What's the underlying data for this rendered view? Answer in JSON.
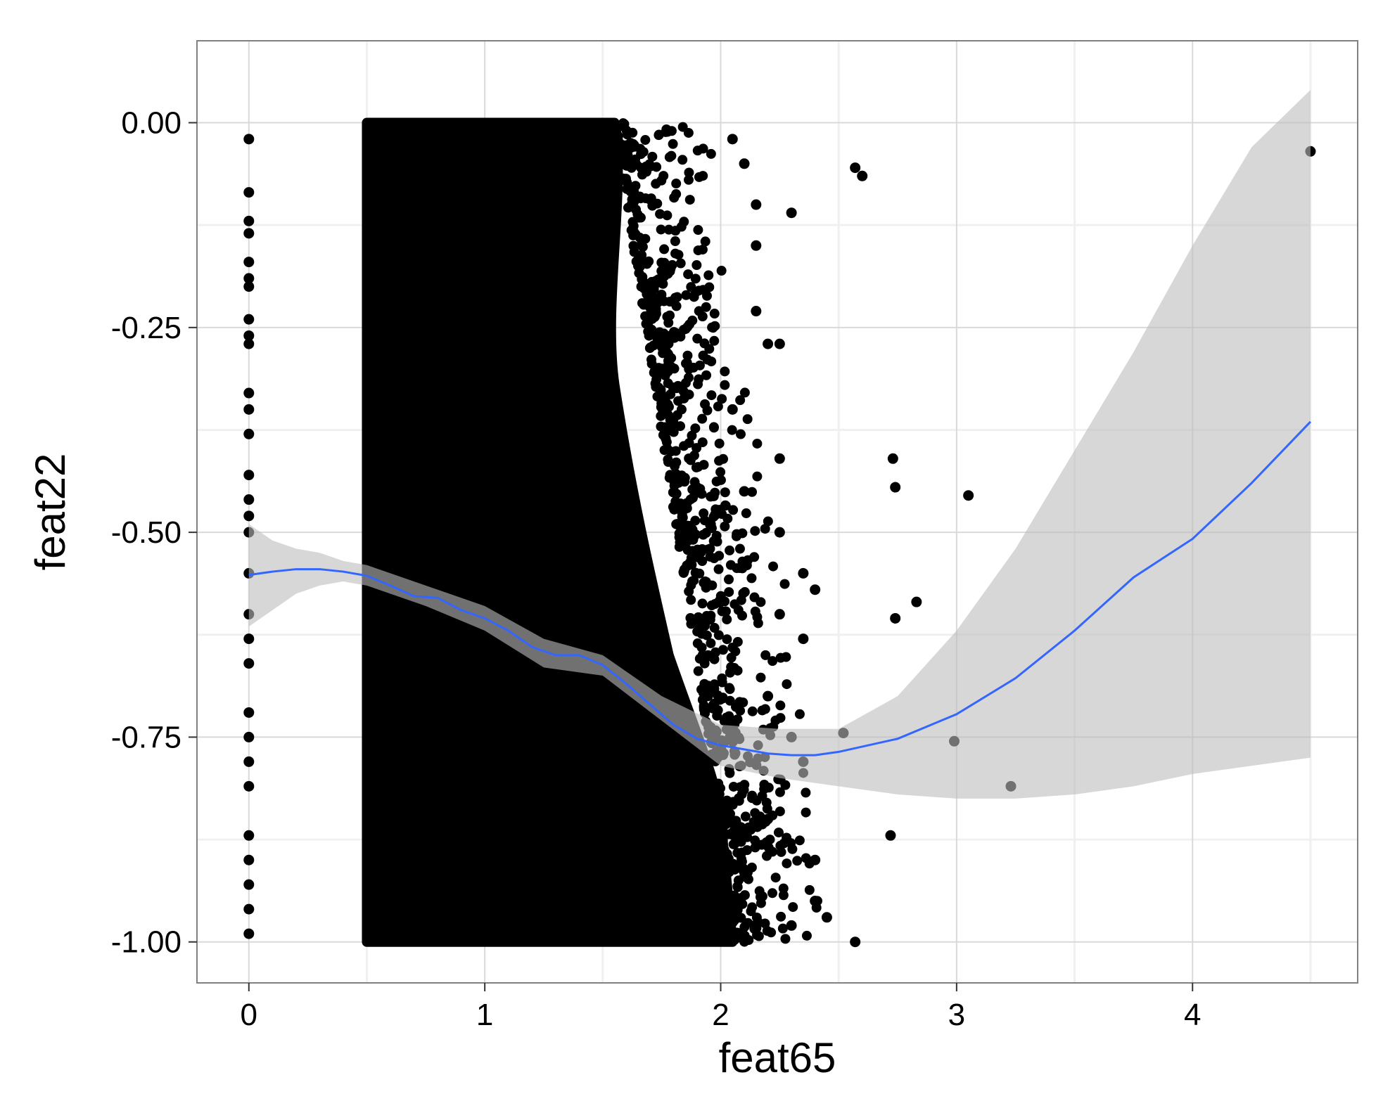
{
  "chart_data": {
    "type": "scatter",
    "xlabel": "feat65",
    "ylabel": "feat22",
    "xlim": [
      -0.22,
      4.7
    ],
    "ylim": [
      -1.05,
      0.1
    ],
    "x_ticks": [
      {
        "value": 0,
        "label": "0"
      },
      {
        "value": 1,
        "label": "1"
      },
      {
        "value": 2,
        "label": "2"
      },
      {
        "value": 3,
        "label": "3"
      },
      {
        "value": 4,
        "label": "4"
      }
    ],
    "y_ticks": [
      {
        "value": 0.0,
        "label": "0.00"
      },
      {
        "value": -0.25,
        "label": "-0.25"
      },
      {
        "value": -0.5,
        "label": "-0.50"
      },
      {
        "value": -0.75,
        "label": "-0.75"
      },
      {
        "value": -1.0,
        "label": "-1.00"
      }
    ],
    "grid": true,
    "legend": "none",
    "colors": {
      "points": "#000000",
      "smooth_line": "#3366FF",
      "ribbon": "#BDBDBD",
      "panel_border": "#808080",
      "grid_major": "#D9D9D9",
      "grid_minor": "#F0F0F0"
    },
    "dense_band": {
      "x_min": 0.5,
      "x_max": 2.0,
      "y_min": -1.0,
      "y_max": 0.0,
      "description": "saturated region of overplotted points"
    },
    "scatter_points": [
      [
        0,
        -0.02
      ],
      [
        0,
        -0.085
      ],
      [
        0,
        -0.12
      ],
      [
        0,
        -0.135
      ],
      [
        0,
        -0.17
      ],
      [
        0,
        -0.19
      ],
      [
        0,
        -0.2
      ],
      [
        0,
        -0.24
      ],
      [
        0,
        -0.26
      ],
      [
        0,
        -0.27
      ],
      [
        0,
        -0.33
      ],
      [
        0,
        -0.35
      ],
      [
        0,
        -0.38
      ],
      [
        0,
        -0.43
      ],
      [
        0,
        -0.46
      ],
      [
        0,
        -0.48
      ],
      [
        0,
        -0.5
      ],
      [
        0,
        -0.55
      ],
      [
        0,
        -0.6
      ],
      [
        0,
        -0.63
      ],
      [
        0,
        -0.66
      ],
      [
        0,
        -0.72
      ],
      [
        0,
        -0.75
      ],
      [
        0,
        -0.78
      ],
      [
        0,
        -0.81
      ],
      [
        0,
        -0.87
      ],
      [
        0,
        -0.9
      ],
      [
        0,
        -0.93
      ],
      [
        0,
        -0.96
      ],
      [
        0,
        -0.99
      ],
      [
        2.05,
        -0.02
      ],
      [
        2.1,
        -0.05
      ],
      [
        2.15,
        -0.1
      ],
      [
        2.3,
        -0.11
      ],
      [
        2.15,
        -0.15
      ],
      [
        2.2,
        -0.27
      ],
      [
        2.25,
        -0.27
      ],
      [
        2.15,
        -0.23
      ],
      [
        2.25,
        -0.41
      ],
      [
        2.05,
        -0.35
      ],
      [
        2.1,
        -0.45
      ],
      [
        2.25,
        -0.5
      ],
      [
        2.35,
        -0.55
      ],
      [
        2.4,
        -0.57
      ],
      [
        2.25,
        -0.6
      ],
      [
        2.35,
        -0.63
      ],
      [
        2.2,
        -0.7
      ],
      [
        2.3,
        -0.75
      ],
      [
        2.35,
        -0.78
      ],
      [
        2.2,
        -0.85
      ],
      [
        2.4,
        -0.9
      ],
      [
        2.4,
        -0.95
      ],
      [
        2.45,
        -0.97
      ],
      [
        2.3,
        -0.98
      ],
      [
        2.57,
        -0.055
      ],
      [
        2.6,
        -0.065
      ],
      [
        2.52,
        -0.745
      ],
      [
        2.57,
        -1.0
      ],
      [
        2.73,
        -0.41
      ],
      [
        2.74,
        -0.445
      ],
      [
        2.74,
        -0.605
      ],
      [
        2.72,
        -0.87
      ],
      [
        2.83,
        -0.585
      ],
      [
        2.99,
        -0.755
      ],
      [
        3.05,
        -0.455
      ],
      [
        3.23,
        -0.81
      ],
      [
        4.5,
        -0.035
      ]
    ],
    "smooth_line": {
      "x": [
        0,
        0.1,
        0.2,
        0.3,
        0.4,
        0.5,
        0.6,
        0.7,
        0.8,
        0.9,
        1.0,
        1.1,
        1.2,
        1.3,
        1.4,
        1.5,
        1.6,
        1.7,
        1.8,
        1.9,
        2.0,
        2.1,
        2.2,
        2.3,
        2.4,
        2.5,
        2.75,
        3.0,
        3.25,
        3.5,
        3.75,
        4.0,
        4.25,
        4.5
      ],
      "y": [
        -0.552,
        -0.548,
        -0.545,
        -0.545,
        -0.548,
        -0.553,
        -0.565,
        -0.578,
        -0.58,
        -0.595,
        -0.605,
        -0.62,
        -0.64,
        -0.65,
        -0.65,
        -0.662,
        -0.685,
        -0.71,
        -0.735,
        -0.752,
        -0.76,
        -0.765,
        -0.77,
        -0.772,
        -0.772,
        -0.768,
        -0.752,
        -0.722,
        -0.678,
        -0.62,
        -0.555,
        -0.508,
        -0.44,
        -0.365
      ]
    },
    "ribbon": {
      "x": [
        0,
        0.1,
        0.2,
        0.3,
        0.4,
        0.5,
        0.75,
        1.0,
        1.25,
        1.5,
        1.75,
        2.0,
        2.25,
        2.5,
        2.75,
        3.0,
        3.25,
        3.5,
        3.75,
        4.0,
        4.25,
        4.5
      ],
      "upper": [
        -0.49,
        -0.51,
        -0.52,
        -0.525,
        -0.535,
        -0.54,
        -0.565,
        -0.59,
        -0.63,
        -0.65,
        -0.7,
        -0.735,
        -0.74,
        -0.74,
        -0.7,
        -0.62,
        -0.52,
        -0.4,
        -0.28,
        -0.15,
        -0.03,
        0.04
      ],
      "lower": [
        -0.615,
        -0.595,
        -0.575,
        -0.565,
        -0.56,
        -0.565,
        -0.59,
        -0.62,
        -0.665,
        -0.675,
        -0.73,
        -0.785,
        -0.8,
        -0.81,
        -0.82,
        -0.825,
        -0.825,
        -0.82,
        -0.81,
        -0.795,
        -0.785,
        -0.775
      ]
    }
  }
}
